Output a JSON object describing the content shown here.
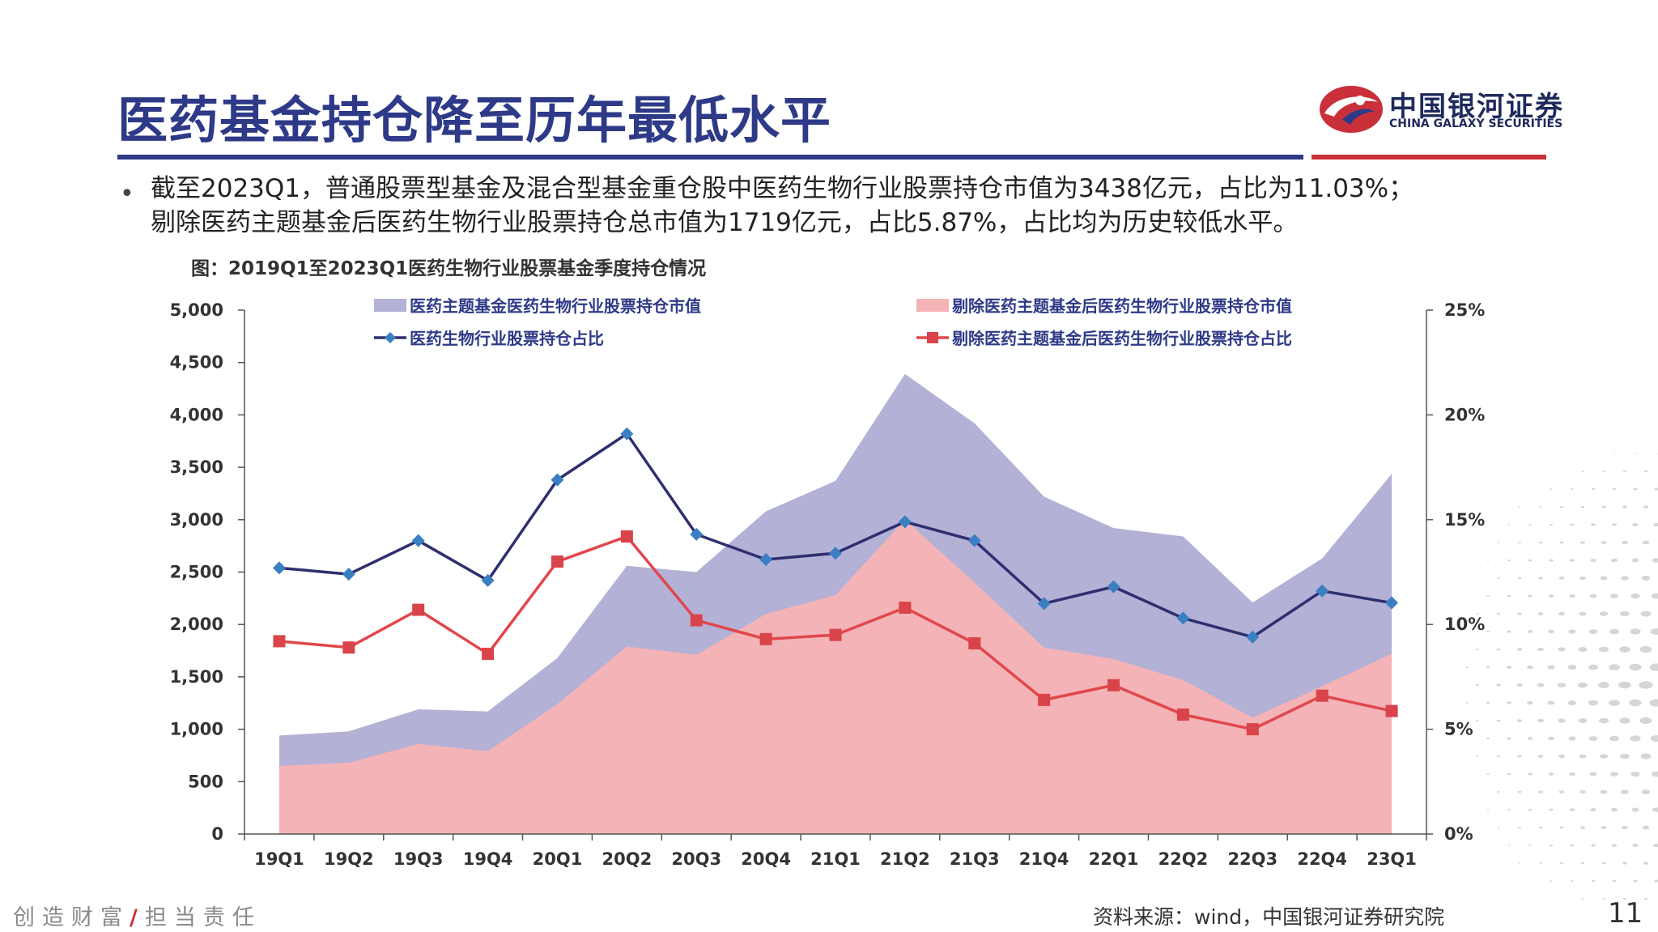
{
  "header": {
    "title": "医药基金持仓降至历年最低水平",
    "logo_cn": "中国银河证券",
    "logo_en": "CHINA GALAXY SECURITIES"
  },
  "bullet": {
    "line1": "截至2023Q1，普通股票型基金及混合型基金重仓股中医药生物行业股票持仓市值为3438亿元，占比为11.03%；",
    "line2": "剔除医药主题基金后医药生物行业股票持仓总市值为1719亿元，占比5.87%，占比均为历史较低水平。"
  },
  "figure_title": "图：2019Q1至2023Q1医药生物行业股票基金季度持仓情况",
  "colors": {
    "area_total": "#b3b1d6",
    "area_excl": "#f4b3b6",
    "line_total": "#2e2f6e",
    "line_excl": "#e0474c",
    "marker_total": "#3a7fc1",
    "marker_excl": "#d9444a"
  },
  "chart_data": {
    "type": "area+line",
    "categories": [
      "19Q1",
      "19Q2",
      "19Q3",
      "19Q4",
      "20Q1",
      "20Q2",
      "20Q3",
      "20Q4",
      "21Q1",
      "21Q2",
      "21Q3",
      "21Q4",
      "22Q1",
      "22Q2",
      "22Q3",
      "22Q4",
      "23Q1"
    ],
    "series": [
      {
        "name": "医药主题基金医药生物行业股票持仓市值",
        "kind": "area",
        "axis": "left",
        "values": [
          940,
          980,
          1190,
          1170,
          1680,
          2560,
          2500,
          3080,
          3370,
          4390,
          3920,
          3220,
          2920,
          2840,
          2210,
          2630,
          3438
        ]
      },
      {
        "name": "剔除医药主题基金后医药生物行业股票持仓市值",
        "kind": "area",
        "axis": "left",
        "values": [
          650,
          680,
          860,
          790,
          1240,
          1790,
          1710,
          2100,
          2280,
          3000,
          2400,
          1780,
          1670,
          1470,
          1110,
          1410,
          1719
        ]
      },
      {
        "name": "医药生物行业股票持仓占比",
        "kind": "line",
        "axis": "right",
        "marker": "diamond",
        "values": [
          12.7,
          12.4,
          14.0,
          12.1,
          16.9,
          19.1,
          14.3,
          13.1,
          13.4,
          14.9,
          14.0,
          11.0,
          11.8,
          10.3,
          9.4,
          11.6,
          11.03
        ]
      },
      {
        "name": "剔除医药主题基金后医药生物行业股票持仓占比",
        "kind": "line",
        "axis": "right",
        "marker": "square",
        "values": [
          9.2,
          8.9,
          10.7,
          8.6,
          13.0,
          14.2,
          10.2,
          9.3,
          9.5,
          10.8,
          9.1,
          6.4,
          7.1,
          5.7,
          5.0,
          6.6,
          5.87
        ]
      }
    ],
    "y_left": {
      "min": 0,
      "max": 5000,
      "ticks": [
        "0",
        "500",
        "1,000",
        "1,500",
        "2,000",
        "2,500",
        "3,000",
        "3,500",
        "4,000",
        "4,500",
        "5,000"
      ]
    },
    "y_right": {
      "min": 0,
      "max": 25,
      "ticks": [
        "0%",
        "5%",
        "10%",
        "15%",
        "20%",
        "25%"
      ]
    },
    "legend_position": "top"
  },
  "footer": {
    "slogan_a": "创造财富",
    "slogan_sep": "/",
    "slogan_b": "担当责任",
    "source": "资料来源：wind，中国银河证券研究院",
    "page": "11"
  }
}
